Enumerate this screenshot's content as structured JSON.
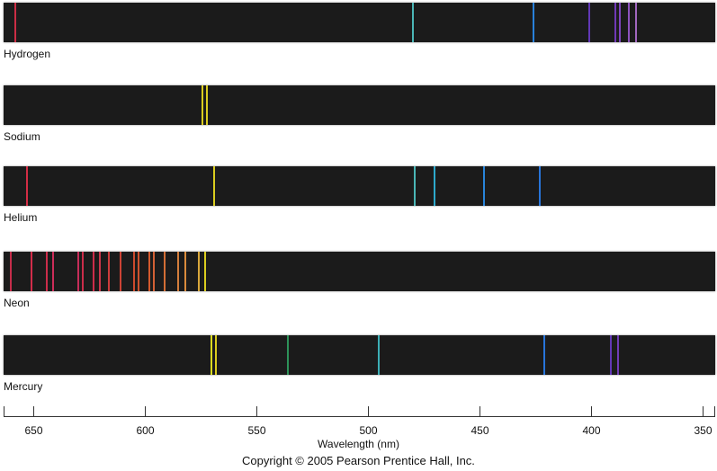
{
  "spectra": [
    {
      "name": "Hydrogen",
      "lines": [
        {
          "nm": 658,
          "color": "#e0304a"
        },
        {
          "nm": 480,
          "color": "#50c8c8"
        },
        {
          "nm": 426,
          "color": "#2a8cf0"
        },
        {
          "nm": 401,
          "color": "#6a3cc8"
        },
        {
          "nm": 389,
          "color": "#7a3cc8"
        },
        {
          "nm": 387,
          "color": "#8a4ad0"
        },
        {
          "nm": 383,
          "color": "#9a5ad0"
        },
        {
          "nm": 380,
          "color": "#b070d0"
        }
      ]
    },
    {
      "name": "Sodium",
      "lines": [
        {
          "nm": 574,
          "color": "#f0e020"
        },
        {
          "nm": 572,
          "color": "#f0e020"
        }
      ]
    },
    {
      "name": "Helium",
      "lines": [
        {
          "nm": 653,
          "color": "#e8304a"
        },
        {
          "nm": 569,
          "color": "#f0e020"
        },
        {
          "nm": 479,
          "color": "#50c8c8"
        },
        {
          "nm": 470,
          "color": "#30b8e0"
        },
        {
          "nm": 448,
          "color": "#2a90f0"
        },
        {
          "nm": 423,
          "color": "#2a80f0"
        }
      ]
    },
    {
      "name": "Neon",
      "lines": [
        {
          "nm": 660,
          "color": "#d83050"
        },
        {
          "nm": 651,
          "color": "#e83050"
        },
        {
          "nm": 644,
          "color": "#e03050"
        },
        {
          "nm": 641,
          "color": "#e03060"
        },
        {
          "nm": 630,
          "color": "#d83060"
        },
        {
          "nm": 628,
          "color": "#e03050"
        },
        {
          "nm": 623,
          "color": "#e03050"
        },
        {
          "nm": 620,
          "color": "#e03850"
        },
        {
          "nm": 616,
          "color": "#e04040"
        },
        {
          "nm": 611,
          "color": "#e04838"
        },
        {
          "nm": 605,
          "color": "#e05030"
        },
        {
          "nm": 603,
          "color": "#e05830"
        },
        {
          "nm": 598,
          "color": "#e86030"
        },
        {
          "nm": 596,
          "color": "#e86838"
        },
        {
          "nm": 591,
          "color": "#e87838"
        },
        {
          "nm": 585,
          "color": "#e88840"
        },
        {
          "nm": 582,
          "color": "#f09840"
        },
        {
          "nm": 576,
          "color": "#f0b840"
        },
        {
          "nm": 573,
          "color": "#f0e020"
        }
      ]
    },
    {
      "name": "Mercury",
      "lines": [
        {
          "nm": 570,
          "color": "#f0f020"
        },
        {
          "nm": 568,
          "color": "#f0e020"
        },
        {
          "nm": 536,
          "color": "#30a060"
        },
        {
          "nm": 495,
          "color": "#40c0c8"
        },
        {
          "nm": 421,
          "color": "#2a80f0"
        },
        {
          "nm": 391,
          "color": "#6a3cc8"
        },
        {
          "nm": 388,
          "color": "#7a40c8"
        }
      ]
    }
  ],
  "axis": {
    "ticks": [
      "650",
      "600",
      "550",
      "500",
      "450",
      "400",
      "350"
    ],
    "range_nm": [
      663,
      344
    ],
    "label": "Wavelength (nm)"
  },
  "copyright": "Copyright © 2005 Pearson Prentice Hall, Inc."
}
